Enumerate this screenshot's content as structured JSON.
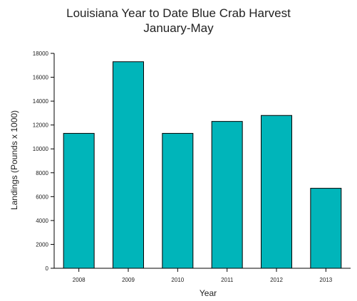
{
  "chart_data": {
    "type": "bar",
    "title": "Louisiana Year to Date Blue Crab Harvest",
    "subtitle": "January-May",
    "xlabel": "Year",
    "ylabel": "Landings (Pounds x 1000)",
    "categories": [
      "2008",
      "2009",
      "2010",
      "2011",
      "2012",
      "2013"
    ],
    "values": [
      11300,
      17300,
      11300,
      12300,
      12800,
      6700
    ],
    "ylim": [
      0,
      18000
    ],
    "yticks": [
      "0",
      "2000",
      "4000",
      "6000",
      "8000",
      "10000",
      "12000",
      "14000",
      "16000",
      "18000"
    ],
    "grid": false,
    "legend": "none",
    "colors": {
      "bar_fill": "#00B5BA",
      "bar_stroke": "#000000",
      "axis": "#000000",
      "text": "#222222"
    }
  }
}
